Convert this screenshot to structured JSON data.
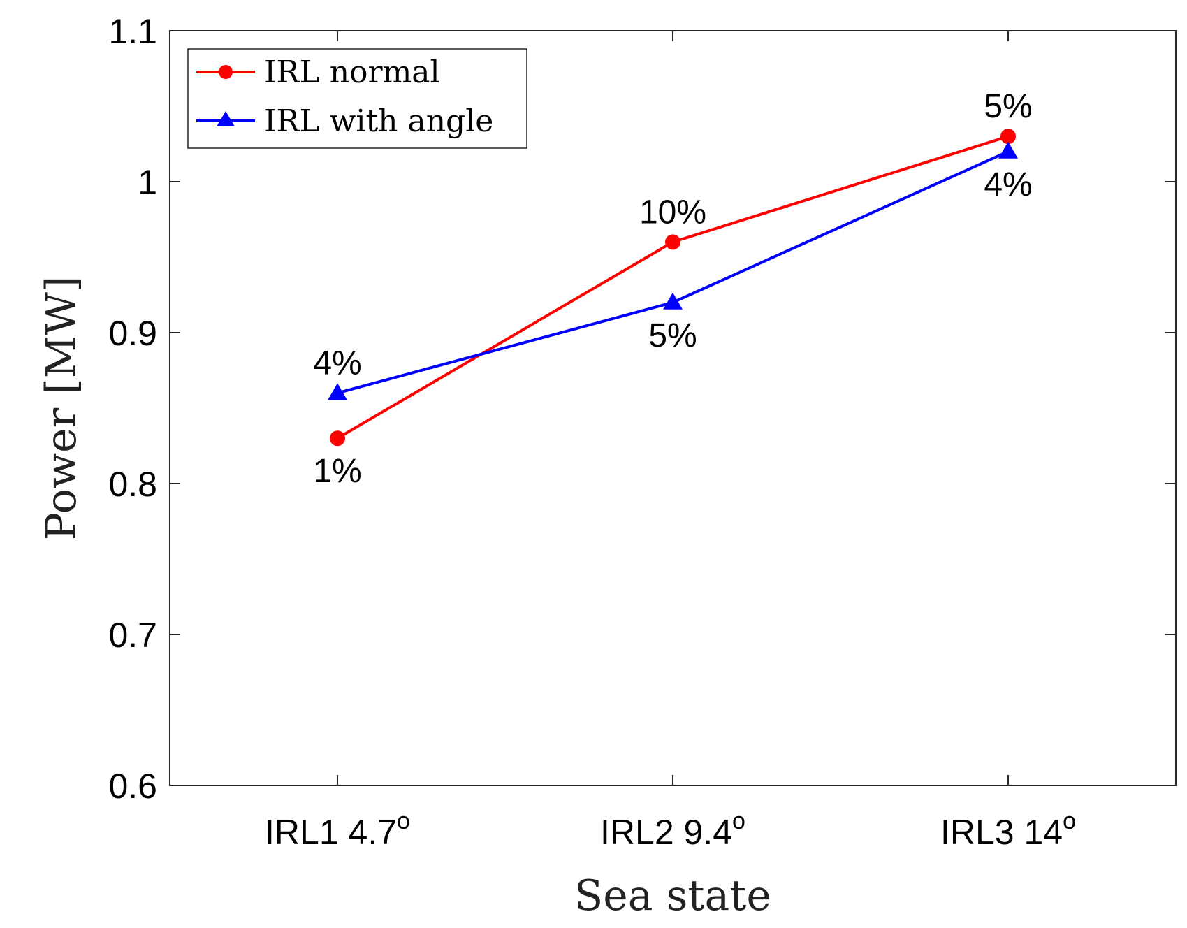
{
  "chart_data": {
    "type": "line",
    "title": "",
    "xlabel": "Sea state",
    "ylabel": "Power [MW]",
    "ylim": [
      0.6,
      1.1
    ],
    "yticks": [
      "0.6",
      "0.7",
      "0.8",
      "0.9",
      "1",
      "1.1"
    ],
    "categories": [
      {
        "base": "IRL1 4.7",
        "sup": "o"
      },
      {
        "base": "IRL2 9.4",
        "sup": "o"
      },
      {
        "base": "IRL3 14",
        "sup": "o"
      }
    ],
    "grid": false,
    "legend_position": "top-left",
    "series": [
      {
        "name": "IRL normal",
        "color": "#ff0000",
        "marker": "circle",
        "values": [
          0.83,
          0.96,
          1.03
        ],
        "labels": [
          "1%",
          "10%",
          "5%"
        ],
        "label_side": [
          "below",
          "above",
          "above"
        ]
      },
      {
        "name": "IRL with angle",
        "color": "#0000ff",
        "marker": "triangle",
        "values": [
          0.86,
          0.92,
          1.02
        ],
        "labels": [
          "4%",
          "5%",
          "4%"
        ],
        "label_side": [
          "above",
          "below",
          "below"
        ]
      }
    ]
  }
}
